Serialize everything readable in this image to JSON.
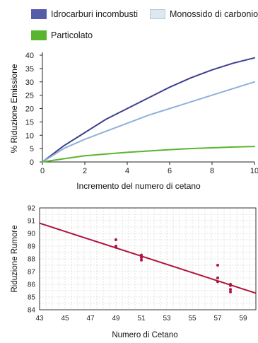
{
  "legend": {
    "items": [
      {
        "label": "Idrocarburi incombusti",
        "color": "#565ca8"
      },
      {
        "label": "Monossido di carbonio",
        "color": "#dce9f0"
      },
      {
        "label": "Particolato",
        "color": "#5ab52e"
      }
    ]
  },
  "chart_data": [
    {
      "type": "line",
      "title": "",
      "xlabel": "Incremento del numero di cetano",
      "ylabel": "% Riduzione Emissione",
      "xlim": [
        0,
        10
      ],
      "ylim": [
        0,
        40
      ],
      "xticks": [
        "0",
        "2",
        "4",
        "6",
        "8",
        "10"
      ],
      "yticks": [
        "0",
        "5",
        "10",
        "15",
        "20",
        "25",
        "30",
        "35",
        "40"
      ],
      "grid": false,
      "series": [
        {
          "name": "Idrocarburi incombusti",
          "color": "#3d3f8f",
          "x": [
            0,
            1,
            2,
            3,
            4,
            5,
            6,
            7,
            8,
            9,
            10
          ],
          "y": [
            0,
            6,
            11,
            16,
            20,
            24,
            28,
            31.5,
            34.5,
            37,
            39
          ]
        },
        {
          "name": "Monossido di carbonio",
          "color": "#8fb1d9",
          "x": [
            0,
            1,
            2,
            3,
            4,
            5,
            6,
            7,
            8,
            9,
            10
          ],
          "y": [
            0,
            5,
            8.5,
            11.5,
            14.5,
            17.5,
            20,
            22.5,
            25,
            27.5,
            30
          ]
        },
        {
          "name": "Particolato",
          "color": "#5ab52e",
          "x": [
            0,
            1,
            2,
            3,
            4,
            5,
            6,
            7,
            8,
            9,
            10
          ],
          "y": [
            0,
            1.2,
            2.3,
            3,
            3.6,
            4.1,
            4.6,
            5,
            5.3,
            5.6,
            5.8
          ]
        }
      ]
    },
    {
      "type": "scatter",
      "title": "",
      "xlabel": "Numero di Cetano",
      "ylabel": "Riduzione Rumore",
      "xlim": [
        43,
        60
      ],
      "ylim": [
        84,
        92
      ],
      "xticks": [
        "43",
        "45",
        "47",
        "49",
        "51",
        "53",
        "55",
        "57",
        "59"
      ],
      "yticks": [
        "84",
        "85",
        "86",
        "87",
        "88",
        "89",
        "90",
        "91",
        "92"
      ],
      "grid": true,
      "points": [
        {
          "x": 49,
          "y": 89.5
        },
        {
          "x": 49,
          "y": 89.0
        },
        {
          "x": 49,
          "y": 88.9
        },
        {
          "x": 51,
          "y": 88.3
        },
        {
          "x": 51,
          "y": 88.1
        },
        {
          "x": 51,
          "y": 87.9
        },
        {
          "x": 57,
          "y": 87.5
        },
        {
          "x": 57,
          "y": 86.5
        },
        {
          "x": 57,
          "y": 86.2
        },
        {
          "x": 58,
          "y": 86.0
        },
        {
          "x": 58,
          "y": 85.9
        },
        {
          "x": 58,
          "y": 85.6
        },
        {
          "x": 58,
          "y": 85.4
        }
      ],
      "trendline": {
        "color": "#b0143e",
        "x": [
          43,
          60
        ],
        "y": [
          90.8,
          85.3
        ]
      },
      "point_color": "#b0143e"
    }
  ]
}
